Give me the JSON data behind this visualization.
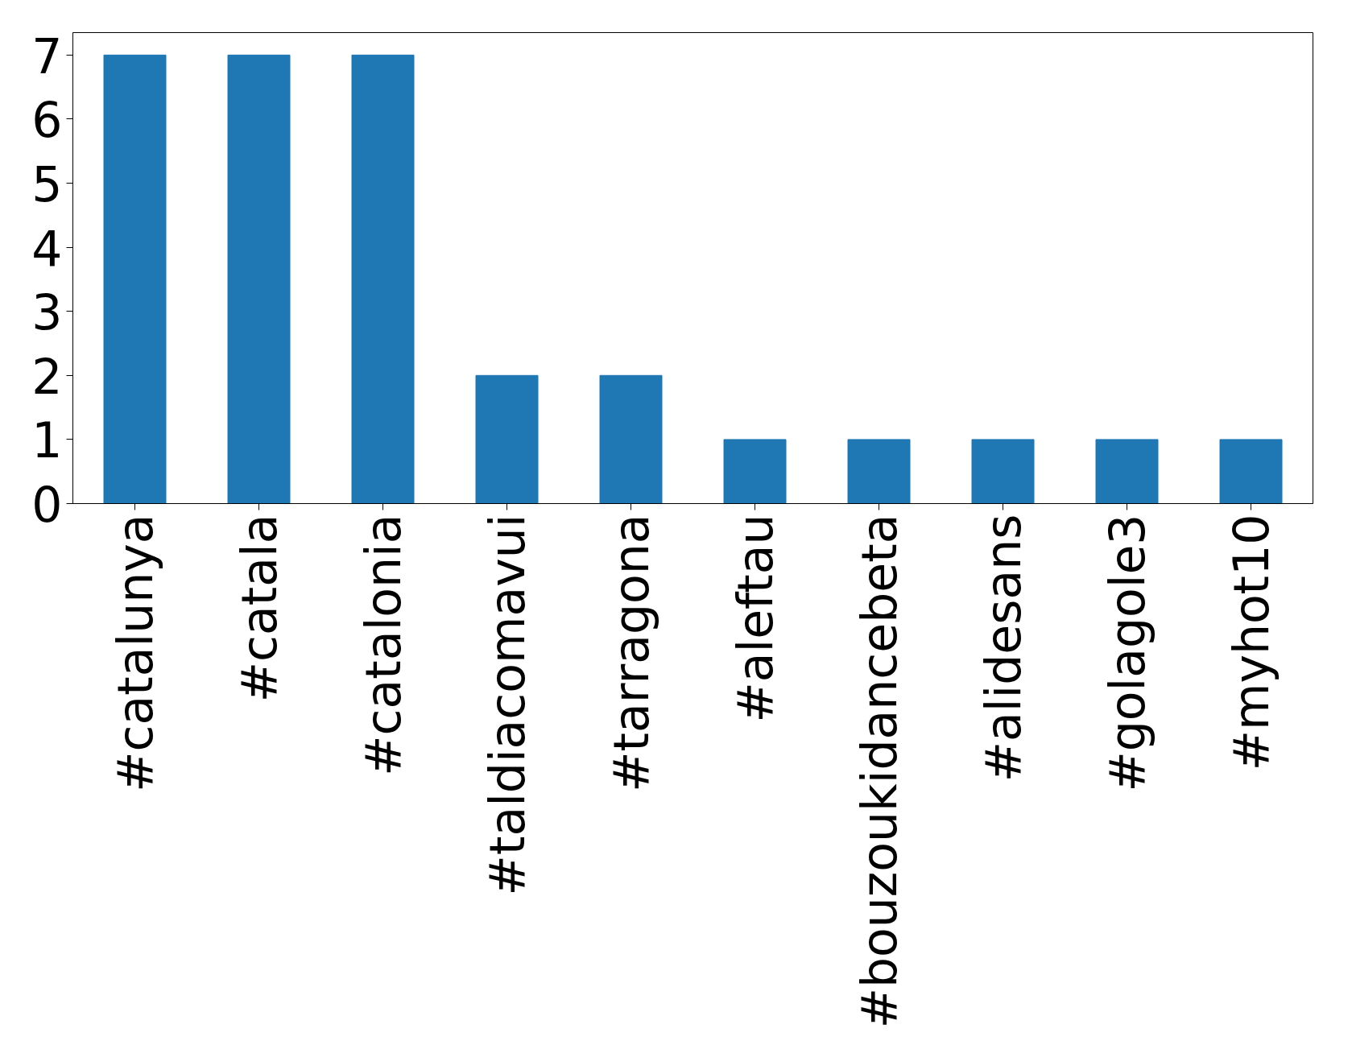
{
  "chart_data": {
    "type": "bar",
    "categories": [
      "#catalunya",
      "#catala",
      "#catalonia",
      "#taldiacomavui",
      "#tarragona",
      "#aleftau",
      "#bouzoukidancebeta",
      "#alidesans",
      "#golagole3",
      "#myhot10"
    ],
    "values": [
      7,
      7,
      7,
      2,
      2,
      1,
      1,
      1,
      1,
      1
    ],
    "color": "#1f77b4",
    "ylim": [
      0,
      7.35
    ],
    "yticks": [
      0,
      1,
      2,
      3,
      4,
      5,
      6,
      7
    ],
    "grid": false
  }
}
